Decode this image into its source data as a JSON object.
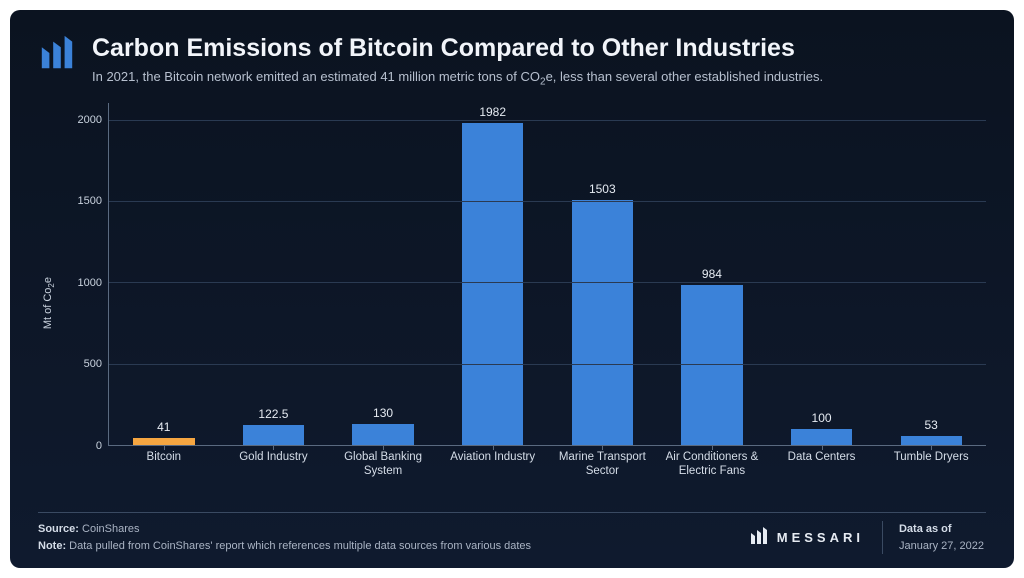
{
  "header": {
    "title": "Carbon Emissions of Bitcoin Compared to Other Industries",
    "subtitle_pre": "In 2021, the Bitcoin network emitted an estimated 41 million metric tons of CO",
    "subtitle_sub": "2",
    "subtitle_post": "e, less than several other established industries."
  },
  "chart": {
    "type": "bar",
    "ylabel_pre": "Mt of Co",
    "ylabel_sub": "2",
    "ylabel_post": "e",
    "ylim": [
      0,
      2100
    ],
    "yticks": [
      0,
      500,
      1000,
      1500,
      2000
    ],
    "grid_color": "#2a3a52",
    "axis_color": "#5a6a80",
    "background_color": "#0c1626",
    "bar_width": 0.56,
    "label_fontsize": 11,
    "value_fontsize": 12,
    "categories": [
      "Bitcoin",
      "Gold Industry",
      "Global Banking System",
      "Aviation Industry",
      "Marine Transport Sector",
      "Air Conditioners & Electric Fans",
      "Data Centers",
      "Tumble Dryers"
    ],
    "values": [
      41,
      122.5,
      130,
      1982,
      1503,
      984,
      100,
      53
    ],
    "bar_colors": [
      "#f6a641",
      "#3b82d9",
      "#3b82d9",
      "#3b82d9",
      "#3b82d9",
      "#3b82d9",
      "#3b82d9",
      "#3b82d9"
    ]
  },
  "footer": {
    "source_label": "Source:",
    "source_value": "CoinShares",
    "note_label": "Note:",
    "note_value": "Data pulled from CoinShares' report which references multiple data sources from various dates",
    "brand": "MESSARI",
    "date_label": "Data as of",
    "date_value": "January 27, 2022"
  },
  "colors": {
    "card_bg_top": "#0b1320",
    "card_bg_bottom": "#0f1a2e",
    "text_primary": "#f2f5fa",
    "text_secondary": "#b7c0cf",
    "divider": "#3a4a62"
  }
}
